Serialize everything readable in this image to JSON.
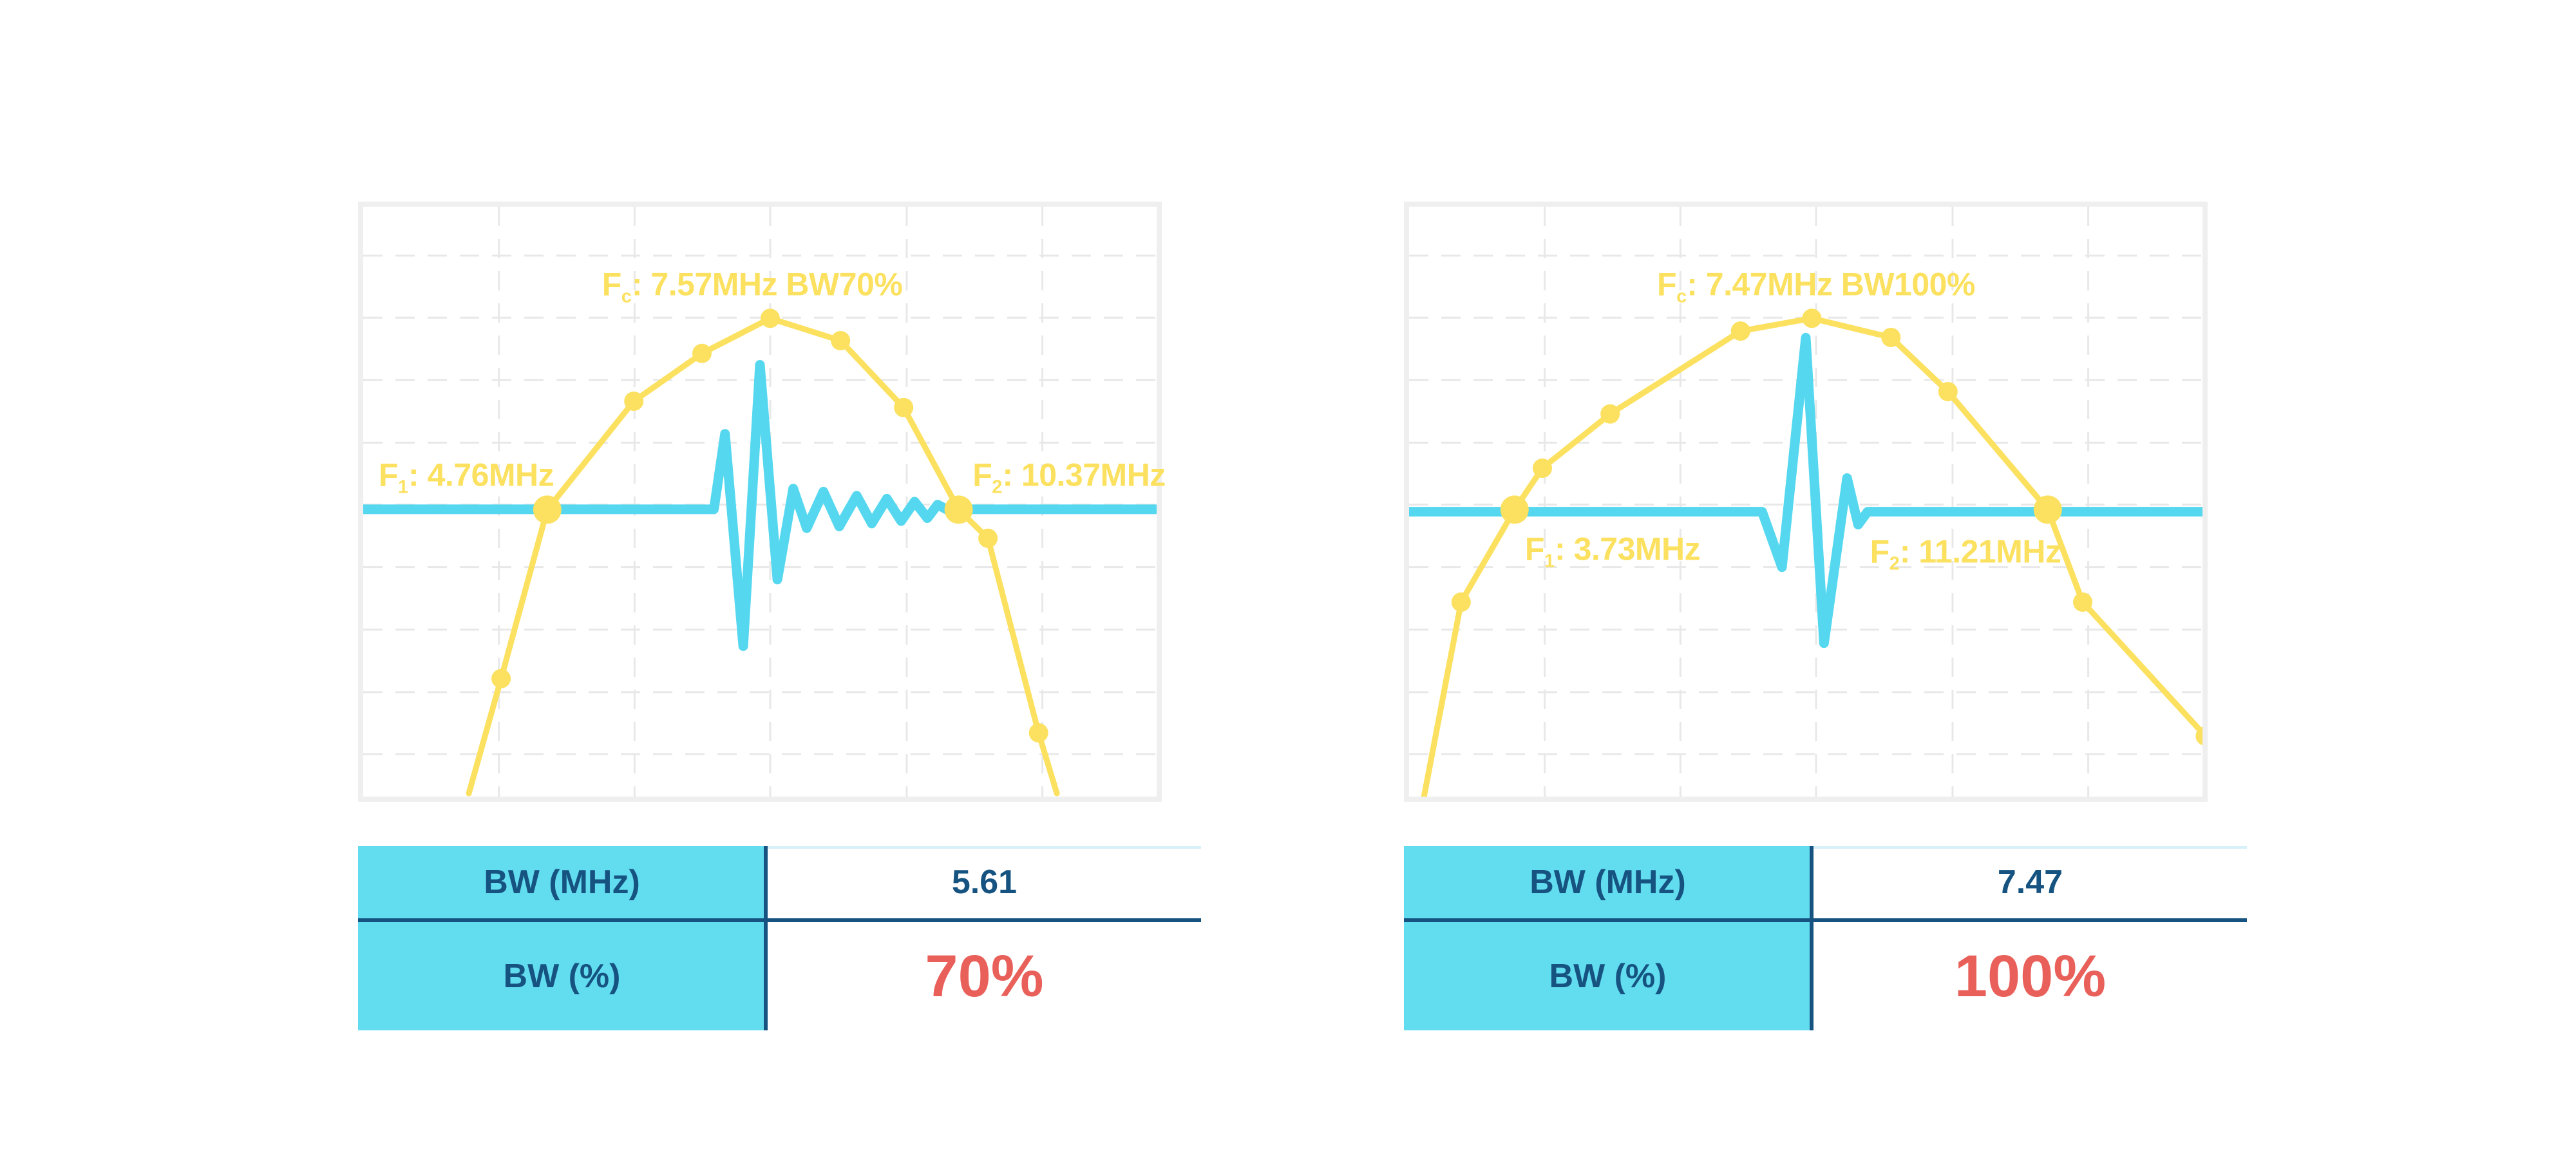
{
  "colors": {
    "spectrum_yellow": "#FBE15F",
    "waveform_cyan": "#55D8EF",
    "table_header_cyan": "#62DCEF",
    "dark_blue": "#165380",
    "highlight_red": "#E9605A",
    "panel_border_gray": "#EFEFEF",
    "grid_gray": "#E8E8E8",
    "table_topline": "#D7F1F8"
  },
  "chart_data": [
    {
      "type": "line",
      "title": "",
      "xlabel": "",
      "ylabel": "",
      "x_unit": "MHz",
      "y_unit": "dB",
      "grid": true,
      "legend": false,
      "xlim": [
        2.25,
        13.07
      ],
      "ylim": [
        -15,
        3.5
      ],
      "baseline_db": -6,
      "fc_mhz": 7.57,
      "f1_mhz": 4.76,
      "f2_mhz": 10.37,
      "bw_mhz": 5.61,
      "bw_pct": 70,
      "fc_label": {
        "prefix": "F",
        "sub": "c",
        "rest": ": 7.57MHz BW70%"
      },
      "f1_label": {
        "prefix": "F",
        "sub": "1",
        "rest": ": 4.76MHz"
      },
      "f2_label": {
        "prefix": "F",
        "sub": "2",
        "rest": ": 10.37MHz"
      },
      "spectrum": [
        [
          3.69,
          -14.9,
          0
        ],
        [
          4.13,
          -11.3,
          1
        ],
        [
          4.76,
          -6.0,
          2
        ],
        [
          5.94,
          -2.6,
          1
        ],
        [
          6.87,
          -1.1,
          1
        ],
        [
          7.8,
          0.0,
          1
        ],
        [
          8.76,
          -0.7,
          1
        ],
        [
          9.62,
          -2.8,
          1
        ],
        [
          10.37,
          -6.0,
          2
        ],
        [
          10.77,
          -6.9,
          1
        ],
        [
          11.46,
          -13.0,
          1
        ],
        [
          11.71,
          -14.9,
          0
        ]
      ],
      "waveform": [
        [
          0.0,
          0.513
        ],
        [
          0.442,
          0.513
        ],
        [
          0.456,
          0.385
        ],
        [
          0.479,
          0.745
        ],
        [
          0.5,
          0.268
        ],
        [
          0.522,
          0.632
        ],
        [
          0.542,
          0.478
        ],
        [
          0.559,
          0.545
        ],
        [
          0.58,
          0.483
        ],
        [
          0.6,
          0.542
        ],
        [
          0.622,
          0.49
        ],
        [
          0.641,
          0.537
        ],
        [
          0.66,
          0.495
        ],
        [
          0.678,
          0.533
        ],
        [
          0.695,
          0.5
        ],
        [
          0.711,
          0.528
        ],
        [
          0.724,
          0.505
        ],
        [
          0.735,
          0.513
        ],
        [
          1.0,
          0.513
        ]
      ]
    },
    {
      "type": "line",
      "title": "",
      "xlabel": "",
      "ylabel": "",
      "x_unit": "MHz",
      "y_unit": "dB",
      "grid": true,
      "legend": false,
      "xlim": [
        2.25,
        13.38
      ],
      "ylim": [
        -15,
        3.5
      ],
      "baseline_db": -6,
      "fc_mhz": 7.47,
      "f1_mhz": 3.73,
      "f2_mhz": 11.21,
      "bw_mhz": 7.47,
      "bw_pct": 100,
      "fc_label": {
        "prefix": "F",
        "sub": "c",
        "rest": ": 7.47MHz BW100%"
      },
      "f1_label": {
        "prefix": "F",
        "sub": "1",
        "rest": ": 3.73MHz"
      },
      "f2_label": {
        "prefix": "F",
        "sub": "2",
        "rest": ": 11.21MHz"
      },
      "spectrum": [
        [
          2.46,
          -15.0,
          0
        ],
        [
          2.98,
          -8.9,
          1
        ],
        [
          3.73,
          -6.0,
          2
        ],
        [
          4.12,
          -4.7,
          1
        ],
        [
          5.07,
          -3.0,
          1
        ],
        [
          6.9,
          -0.4,
          1
        ],
        [
          7.9,
          0.0,
          1
        ],
        [
          9.01,
          -0.6,
          1
        ],
        [
          9.81,
          -2.3,
          1
        ],
        [
          11.21,
          -6.0,
          2
        ],
        [
          11.7,
          -8.9,
          1
        ],
        [
          13.42,
          -13.1,
          1
        ]
      ],
      "waveform": [
        [
          0.0,
          0.517
        ],
        [
          0.445,
          0.517
        ],
        [
          0.47,
          0.611
        ],
        [
          0.5,
          0.222
        ],
        [
          0.523,
          0.74
        ],
        [
          0.552,
          0.46
        ],
        [
          0.566,
          0.539
        ],
        [
          0.578,
          0.517
        ],
        [
          1.0,
          0.517
        ]
      ]
    }
  ],
  "tables": [
    {
      "rows": [
        {
          "label": "BW (MHz)",
          "value": "5.61"
        },
        {
          "label": "BW (%)",
          "value": "70%"
        }
      ]
    },
    {
      "rows": [
        {
          "label": "BW (MHz)",
          "value": "7.47"
        },
        {
          "label": "BW (%)",
          "value": "100%"
        }
      ]
    }
  ]
}
